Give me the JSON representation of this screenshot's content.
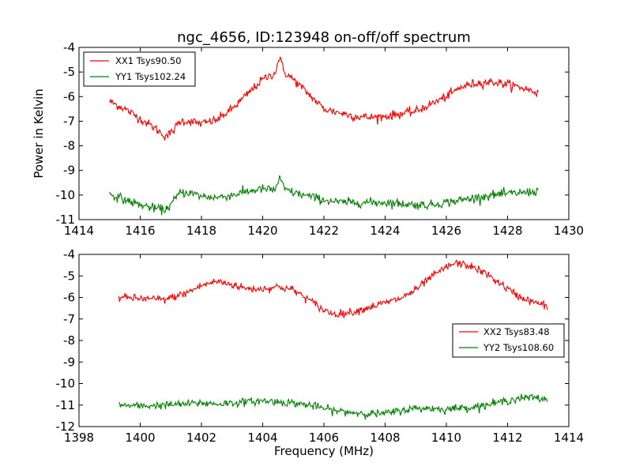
{
  "chart_data": [
    {
      "type": "line",
      "title": "ngc_4656, ID:123948 on-off/off spectrum",
      "xlabel": "",
      "ylabel": "Power in Kelvin",
      "xlim": [
        1414,
        1430
      ],
      "ylim": [
        -11,
        -4
      ],
      "xticks": [
        "1414",
        "1416",
        "1418",
        "1420",
        "1422",
        "1424",
        "1426",
        "1428",
        "1430"
      ],
      "yticks": [
        "-4",
        "-5",
        "-6",
        "-7",
        "-8",
        "-9",
        "-10",
        "-11"
      ],
      "grid": false,
      "legend_position": "top-left",
      "series": [
        {
          "name": "XX1 Tsys90.50",
          "color": "#ff0000",
          "x": [
            1415.0,
            1415.5,
            1416.0,
            1416.5,
            1416.8,
            1417.0,
            1417.3,
            1417.6,
            1418.0,
            1418.5,
            1419.0,
            1419.5,
            1420.0,
            1420.4,
            1420.55,
            1420.7,
            1421.0,
            1421.5,
            1422.0,
            1422.5,
            1423.0,
            1423.5,
            1424.0,
            1424.5,
            1425.0,
            1425.5,
            1426.0,
            1426.5,
            1427.0,
            1427.5,
            1428.0,
            1428.5,
            1429.0
          ],
          "values": [
            -6.2,
            -6.5,
            -6.9,
            -7.3,
            -7.6,
            -7.5,
            -7.0,
            -7.0,
            -7.1,
            -6.95,
            -6.5,
            -5.9,
            -5.3,
            -5.05,
            -4.4,
            -5.0,
            -5.3,
            -5.9,
            -6.5,
            -6.65,
            -6.8,
            -6.85,
            -6.8,
            -6.7,
            -6.6,
            -6.3,
            -6.0,
            -5.6,
            -5.45,
            -5.4,
            -5.5,
            -5.65,
            -5.85
          ]
        },
        {
          "name": "YY1 Tsys102.24",
          "color": "#008000",
          "x": [
            1415.0,
            1415.5,
            1416.0,
            1416.5,
            1416.8,
            1417.0,
            1417.3,
            1417.6,
            1418.0,
            1418.5,
            1419.0,
            1419.5,
            1420.0,
            1420.4,
            1420.55,
            1420.7,
            1421.0,
            1421.5,
            1422.0,
            1422.5,
            1423.0,
            1423.5,
            1424.0,
            1424.5,
            1425.0,
            1425.5,
            1426.0,
            1426.5,
            1427.0,
            1427.5,
            1428.0,
            1428.5,
            1429.0
          ],
          "values": [
            -9.95,
            -10.2,
            -10.4,
            -10.55,
            -10.6,
            -10.4,
            -9.9,
            -9.9,
            -10.05,
            -10.1,
            -10.0,
            -9.85,
            -9.75,
            -9.8,
            -9.3,
            -9.75,
            -9.9,
            -10.05,
            -10.2,
            -10.3,
            -10.3,
            -10.3,
            -10.3,
            -10.35,
            -10.4,
            -10.4,
            -10.3,
            -10.2,
            -10.1,
            -10.0,
            -9.95,
            -9.9,
            -9.85
          ]
        }
      ]
    },
    {
      "type": "line",
      "title": "",
      "xlabel": "Frequency (MHz)",
      "ylabel": "",
      "xlim": [
        1398,
        1414
      ],
      "ylim": [
        -12,
        -4
      ],
      "xticks": [
        "1398",
        "1400",
        "1402",
        "1404",
        "1406",
        "1408",
        "1410",
        "1412",
        "1414"
      ],
      "yticks": [
        "-4",
        "-5",
        "-6",
        "-7",
        "-8",
        "-9",
        "-10",
        "-11",
        "-12"
      ],
      "grid": false,
      "legend_position": "center-right",
      "series": [
        {
          "name": "XX2 Tsys83.48",
          "color": "#ff0000",
          "x": [
            1399.3,
            1400.0,
            1400.8,
            1401.5,
            1402.0,
            1402.5,
            1403.0,
            1403.5,
            1404.0,
            1404.5,
            1405.0,
            1405.5,
            1406.0,
            1406.3,
            1406.6,
            1407.0,
            1407.5,
            1408.0,
            1408.5,
            1409.0,
            1409.5,
            1410.0,
            1410.3,
            1410.8,
            1411.3,
            1411.8,
            1412.3,
            1412.8,
            1413.3
          ],
          "values": [
            -6.0,
            -6.05,
            -6.1,
            -5.8,
            -5.45,
            -5.25,
            -5.4,
            -5.6,
            -5.6,
            -5.5,
            -5.65,
            -6.1,
            -6.6,
            -6.75,
            -6.75,
            -6.65,
            -6.45,
            -6.25,
            -6.05,
            -5.65,
            -5.05,
            -4.6,
            -4.4,
            -4.55,
            -4.9,
            -5.4,
            -5.9,
            -6.2,
            -6.4
          ]
        },
        {
          "name": "YY2 Tsys108.60",
          "color": "#008000",
          "x": [
            1399.3,
            1400.0,
            1400.8,
            1401.5,
            1402.0,
            1402.5,
            1403.0,
            1403.5,
            1404.0,
            1404.5,
            1405.0,
            1405.5,
            1406.0,
            1406.3,
            1406.6,
            1407.0,
            1407.5,
            1408.0,
            1408.5,
            1409.0,
            1409.5,
            1410.0,
            1410.3,
            1410.8,
            1411.3,
            1411.8,
            1412.3,
            1412.8,
            1413.3
          ],
          "values": [
            -11.0,
            -11.05,
            -11.0,
            -10.95,
            -10.9,
            -10.95,
            -10.9,
            -10.85,
            -10.8,
            -10.85,
            -10.9,
            -11.0,
            -11.15,
            -11.25,
            -11.3,
            -11.35,
            -11.4,
            -11.4,
            -11.25,
            -11.15,
            -11.15,
            -11.2,
            -11.15,
            -11.1,
            -11.0,
            -10.85,
            -10.7,
            -10.65,
            -10.75
          ]
        }
      ]
    }
  ]
}
